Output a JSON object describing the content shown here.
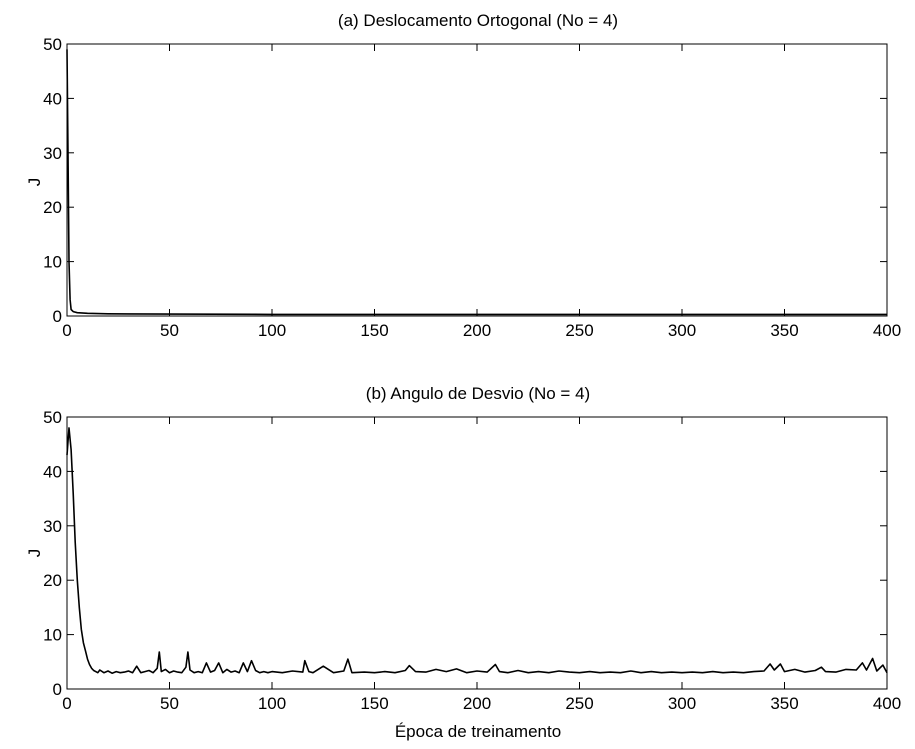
{
  "chart_data": [
    {
      "type": "line",
      "title": "(a) Deslocamento Ortogonal (No = 4)",
      "xlabel": "",
      "ylabel": "J",
      "xlim": [
        0,
        400
      ],
      "ylim": [
        0,
        50
      ],
      "xticks": [
        0,
        50,
        100,
        150,
        200,
        250,
        300,
        350,
        400
      ],
      "yticks": [
        0,
        10,
        20,
        30,
        40,
        50
      ],
      "grid": false,
      "series": [
        {
          "x": [
            0,
            0.5,
            1,
            1.5,
            2,
            3,
            5,
            10,
            20,
            50,
            100,
            200,
            300,
            400
          ],
          "y": [
            49,
            30,
            10,
            3,
            1.2,
            0.8,
            0.6,
            0.5,
            0.4,
            0.35,
            0.3,
            0.3,
            0.3,
            0.3
          ]
        }
      ]
    },
    {
      "type": "line",
      "title": "(b) Angulo de Desvio (No = 4)",
      "xlabel": "Época de treinamento",
      "ylabel": "J",
      "xlim": [
        0,
        400
      ],
      "ylim": [
        0,
        50
      ],
      "xticks": [
        0,
        50,
        100,
        150,
        200,
        250,
        300,
        350,
        400
      ],
      "yticks": [
        0,
        10,
        20,
        30,
        40,
        50
      ],
      "grid": false,
      "series": [
        {
          "x": [
            0,
            1,
            2,
            3,
            4,
            5,
            6,
            7,
            8,
            9,
            10,
            11,
            12,
            13,
            14,
            15,
            16,
            18,
            20,
            22,
            24,
            26,
            28,
            30,
            32,
            34,
            36,
            38,
            40,
            42,
            44,
            45,
            46,
            48,
            50,
            52,
            54,
            56,
            58,
            59,
            60,
            62,
            64,
            66,
            68,
            70,
            72,
            74,
            76,
            78,
            80,
            82,
            84,
            86,
            88,
            90,
            92,
            94,
            96,
            98,
            100,
            105,
            110,
            115,
            116,
            118,
            120,
            125,
            130,
            135,
            137,
            139,
            145,
            150,
            155,
            160,
            165,
            167,
            170,
            175,
            180,
            185,
            190,
            195,
            200,
            205,
            209,
            211,
            215,
            220,
            225,
            230,
            235,
            240,
            245,
            250,
            255,
            260,
            265,
            270,
            275,
            280,
            285,
            290,
            295,
            300,
            305,
            310,
            315,
            320,
            325,
            330,
            335,
            340,
            343,
            345,
            348,
            350,
            355,
            360,
            365,
            368,
            370,
            375,
            380,
            385,
            388,
            390,
            393,
            395,
            398,
            400
          ],
          "y": [
            43,
            48,
            44,
            36,
            27,
            20,
            15,
            11,
            8.5,
            7,
            5.5,
            4.5,
            3.8,
            3.4,
            3.2,
            3.0,
            3.5,
            3.0,
            3.3,
            2.9,
            3.2,
            3.0,
            3.1,
            3.3,
            3.0,
            4.2,
            3.0,
            3.2,
            3.4,
            3.0,
            3.8,
            6.8,
            3.2,
            3.6,
            3.0,
            3.3,
            3.1,
            3.0,
            4.0,
            6.8,
            3.5,
            3.0,
            3.2,
            3.0,
            4.8,
            3.1,
            3.4,
            4.8,
            3.0,
            3.6,
            3.1,
            3.3,
            3.0,
            4.8,
            3.2,
            5.2,
            3.4,
            3.0,
            3.2,
            3.0,
            3.2,
            3.0,
            3.3,
            3.1,
            5.2,
            3.2,
            3.0,
            4.2,
            3.0,
            3.3,
            5.5,
            3.0,
            3.1,
            3.0,
            3.2,
            3.0,
            3.4,
            4.3,
            3.2,
            3.1,
            3.6,
            3.2,
            3.7,
            3.0,
            3.3,
            3.1,
            4.5,
            3.2,
            3.0,
            3.4,
            3.0,
            3.2,
            3.0,
            3.3,
            3.1,
            3.0,
            3.2,
            3.0,
            3.1,
            3.0,
            3.3,
            3.0,
            3.2,
            3.0,
            3.1,
            3.0,
            3.1,
            3.0,
            3.2,
            3.0,
            3.1,
            3.0,
            3.2,
            3.3,
            4.6,
            3.5,
            4.6,
            3.2,
            3.6,
            3.1,
            3.4,
            4.0,
            3.2,
            3.1,
            3.6,
            3.5,
            4.8,
            3.5,
            5.6,
            3.3,
            4.4,
            3.0
          ]
        }
      ]
    }
  ]
}
